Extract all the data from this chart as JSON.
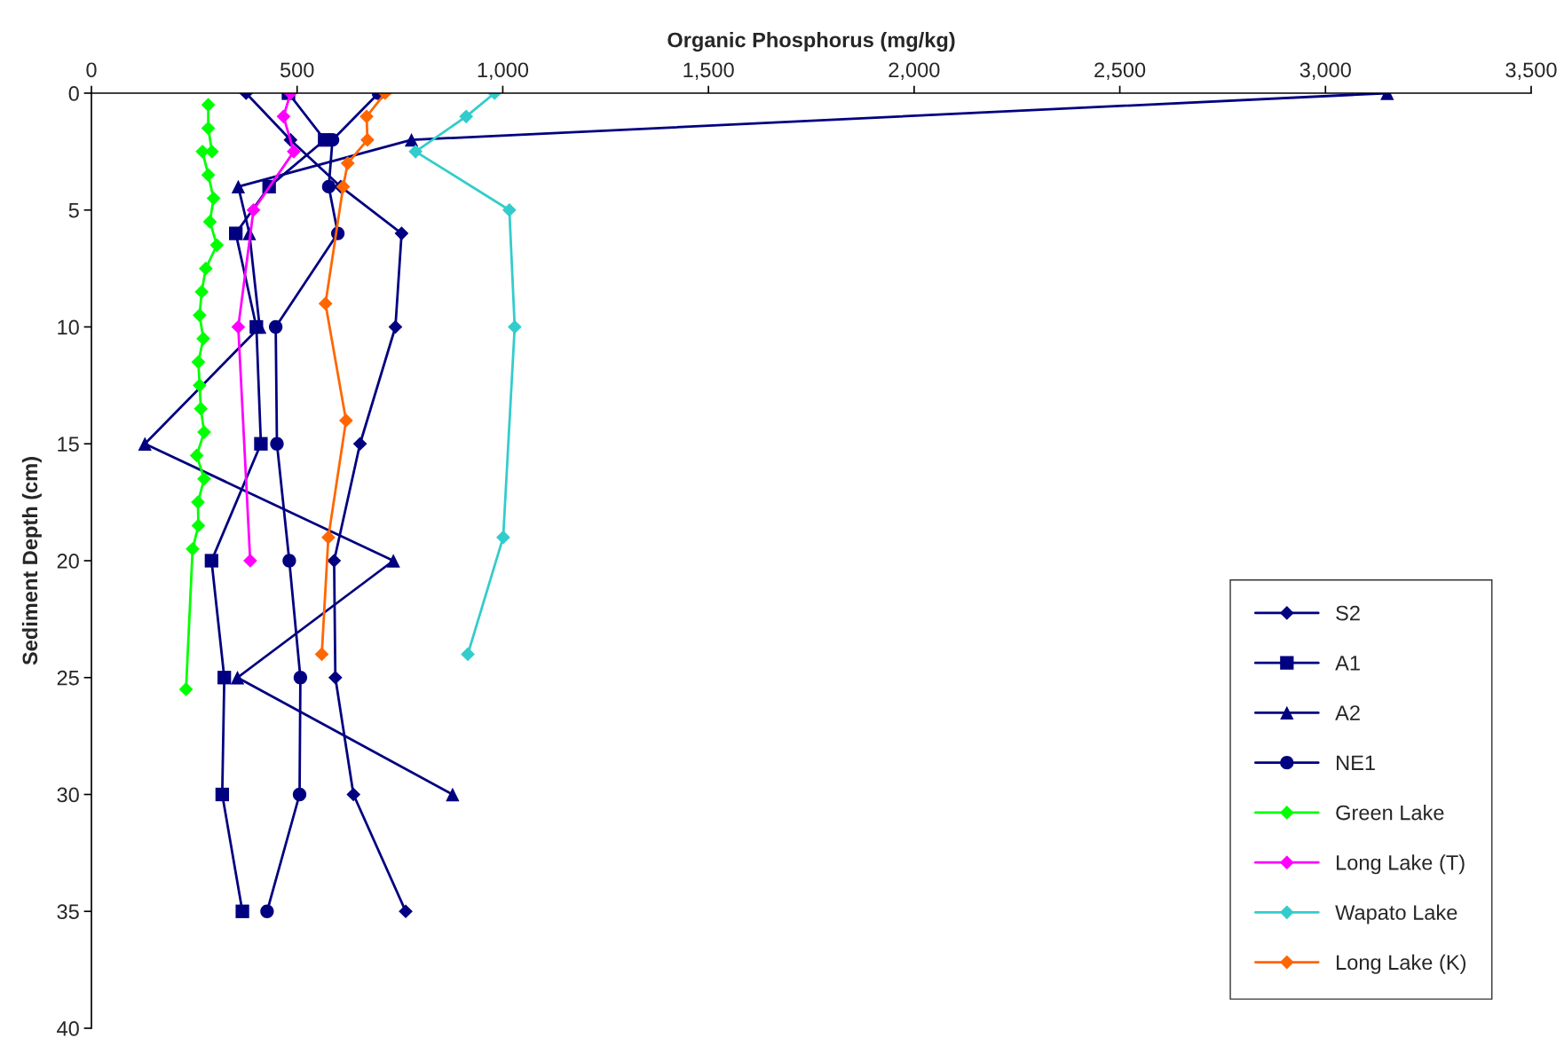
{
  "chart_data": {
    "type": "line",
    "xlabel": "Organic Phosphorus (mg/kg)",
    "ylabel": "Sediment Depth (cm)",
    "xlim": [
      0,
      3500
    ],
    "xticks": [
      0,
      500,
      {
        "value": 1000,
        "label": "1,000"
      },
      {
        "value": 1500,
        "label": "1,500"
      },
      {
        "value": 2000,
        "label": "2,000"
      },
      {
        "value": 2500,
        "label": "2,500"
      },
      {
        "value": 3000,
        "label": "3,000"
      },
      {
        "value": 3500,
        "label": "3,500"
      }
    ],
    "ylim": [
      40,
      0
    ],
    "yticks": [
      0,
      5,
      10,
      15,
      20,
      25,
      30,
      35,
      40
    ],
    "grid": false,
    "legend": "bottom right",
    "line_style": "solid",
    "series": [
      {
        "name": "S2",
        "color": "#000080",
        "marker": "diamond",
        "x": [
          376,
          484,
          606,
          754,
          739,
          653,
          590,
          593,
          637,
          764
        ],
        "values": [
          0,
          2,
          4,
          6,
          10,
          15,
          20,
          25,
          30,
          35
        ]
      },
      {
        "name": "A1",
        "color": "#000080",
        "marker": "square",
        "x": [
          479,
          567,
          432,
          351,
          401,
          412,
          292,
          323,
          318,
          367
        ],
        "values": [
          0,
          2,
          4,
          6,
          10,
          15,
          20,
          25,
          30,
          35
        ]
      },
      {
        "name": "A2",
        "color": "#000080",
        "marker": "triangle",
        "x": [
          3150,
          778,
          357,
          384,
          409,
          130,
          734,
          355,
          878
        ],
        "values": [
          0,
          2,
          4,
          6,
          10,
          15,
          20,
          25,
          30
        ]
      },
      {
        "name": "NE1",
        "color": "#000080",
        "marker": "circle",
        "x": [
          698,
          586,
          577,
          599,
          448,
          451,
          481,
          508,
          506,
          427
        ],
        "values": [
          0,
          2,
          4,
          6,
          10,
          15,
          20,
          25,
          30,
          35
        ]
      },
      {
        "name": "Green Lake",
        "color": "#00ff00",
        "marker": "diamond",
        "x": [
          284,
          284,
          293,
          270,
          284,
          297,
          288,
          305,
          278,
          268,
          263,
          272,
          260,
          263,
          266,
          274,
          256,
          274,
          259,
          260,
          246,
          230
        ],
        "values": [
          0.5,
          1.5,
          2.5,
          2.5,
          3.5,
          4.5,
          5.5,
          6.5,
          7.5,
          8.5,
          9.5,
          10.5,
          11.5,
          12.5,
          13.5,
          14.5,
          15.5,
          16.5,
          17.5,
          18.5,
          19.5,
          25.5
        ]
      },
      {
        "name": "Long Lake (T)",
        "color": "#ff00ff",
        "marker": "diamond",
        "x": [
          484,
          467,
          492,
          394,
          357,
          386
        ],
        "values": [
          0,
          1,
          2.5,
          5,
          10,
          20
        ]
      },
      {
        "name": "Wapato Lake",
        "color": "#33cccc",
        "marker": "diamond",
        "x": [
          980,
          911,
          788,
          1016,
          1029,
          1001,
          915
        ],
        "values": [
          0,
          1,
          2.5,
          5,
          10,
          19,
          24
        ]
      },
      {
        "name": "Long Lake (K)",
        "color": "#ff6600",
        "marker": "diamond",
        "x": [
          714,
          669,
          671,
          623,
          612,
          569,
          619,
          576,
          560
        ],
        "values": [
          0,
          1,
          2,
          3,
          4,
          9,
          14,
          19,
          24
        ]
      }
    ]
  }
}
